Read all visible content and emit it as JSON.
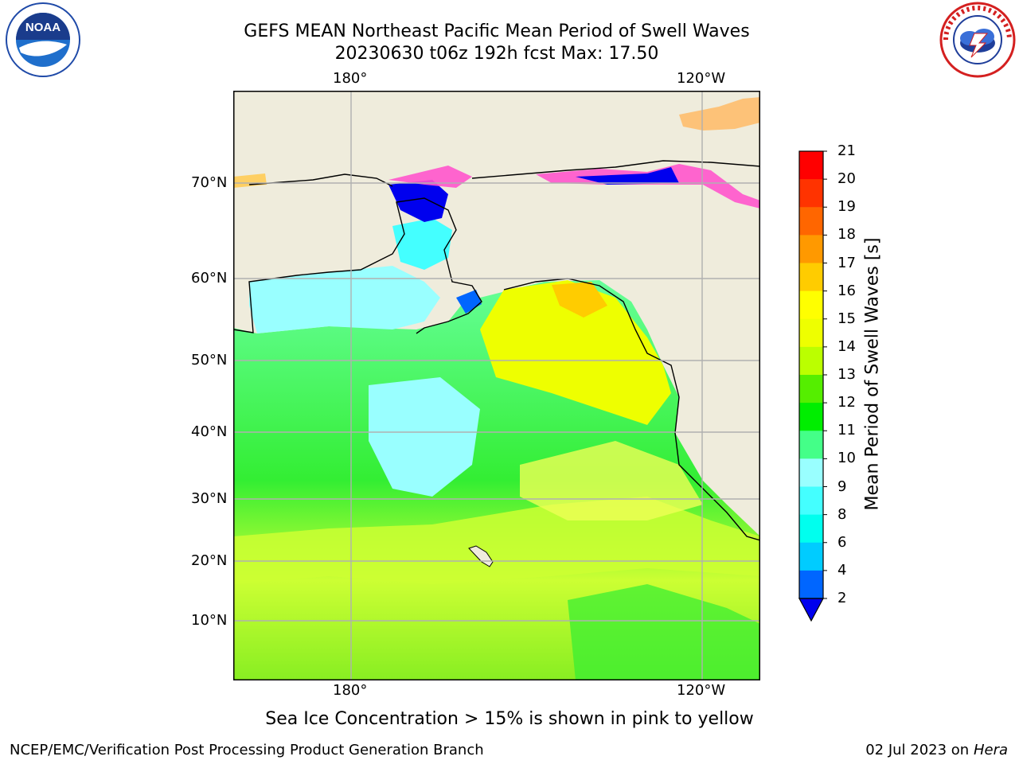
{
  "header": {
    "title_line1": "GEFS MEAN Northeast Pacific Mean Period of Swell Waves",
    "title_line2": "20230630 t06z 192h fcst   Max: 17.50"
  },
  "logos": {
    "left": {
      "text": "NOAA",
      "ring_text": "NATIONAL OCEANIC AND ATMOSPHERIC ADMINISTRATION · U.S. DEPARTMENT OF COMMERCE"
    },
    "right": {
      "ring_text": "NATIONAL WEATHER SERVICE"
    }
  },
  "map": {
    "lon_labels": [
      "180°",
      "120°W"
    ],
    "lat_labels": [
      "70°N",
      "60°N",
      "50°N",
      "40°N",
      "30°N",
      "20°N",
      "10°N"
    ],
    "land_color": "#efecdc",
    "grid_color": "#b0b0b0"
  },
  "colorbar": {
    "label": "Mean Period of Swell Waves [s]",
    "ticks": [
      "2",
      "4",
      "6",
      "8",
      "9",
      "10",
      "11",
      "12",
      "13",
      "14",
      "15",
      "16",
      "17",
      "18",
      "19",
      "20",
      "21"
    ],
    "colors": [
      "#0000ee",
      "#0066ff",
      "#00ccff",
      "#00ffee",
      "#44ffff",
      "#99ffff",
      "#44ff88",
      "#00ee00",
      "#55ee00",
      "#bbff00",
      "#eeff00",
      "#ffff00",
      "#ffcc00",
      "#ff9900",
      "#ff6600",
      "#ff3300",
      "#ff0000"
    ]
  },
  "note": "Sea Ice Concentration > 15% is shown in pink to yellow",
  "footer": {
    "left": "NCEP/EMC/Verification Post Processing Product Generation Branch",
    "right_prefix": "02 Jul 2023 on ",
    "right_machine": "Hera"
  }
}
